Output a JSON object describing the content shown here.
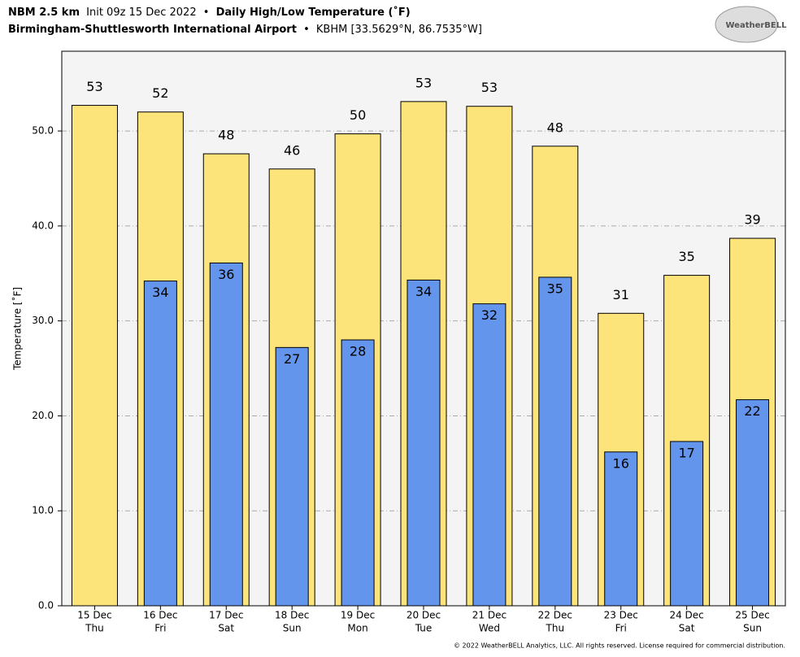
{
  "chart_data": {
    "type": "bar",
    "title": {
      "model": "NBM 2.5 km",
      "init": "Init 09z 15 Dec 2022",
      "separator": "•",
      "product": "Daily High/Low Temperature (˚F)"
    },
    "subtitle": {
      "station": "Birmingham-Shuttlesworth International Airport",
      "separator": "•",
      "location": "KBHM [33.5629°N, 86.7535°W]"
    },
    "y_label": "Temperature [˚F]",
    "logo": "WeatherBELL",
    "footer": "© 2022 WeatherBELL Analytics, LLC. All rights reserved. License required for commercial distribution.",
    "categories": [
      [
        "15 Dec",
        "Thu"
      ],
      [
        "16 Dec",
        "Fri"
      ],
      [
        "17 Dec",
        "Sat"
      ],
      [
        "18 Dec",
        "Sun"
      ],
      [
        "19 Dec",
        "Mon"
      ],
      [
        "20 Dec",
        "Tue"
      ],
      [
        "21 Dec",
        "Wed"
      ],
      [
        "22 Dec",
        "Thu"
      ],
      [
        "23 Dec",
        "Fri"
      ],
      [
        "24 Dec",
        "Sat"
      ],
      [
        "25 Dec",
        "Sun"
      ]
    ],
    "series": [
      {
        "color": "#fde47a",
        "values": [
          52.7,
          52.0,
          47.6,
          46.0,
          49.7,
          53.1,
          52.6,
          48.4,
          30.8,
          34.8,
          38.7
        ],
        "value_labels": [
          "53",
          "52",
          "48",
          "46",
          "50",
          "53",
          "53",
          "48",
          "31",
          "35",
          "39"
        ]
      },
      {
        "color": "#6495ed",
        "values": [
          null,
          34.2,
          36.1,
          27.2,
          28.0,
          34.3,
          31.8,
          34.6,
          16.2,
          17.3,
          21.7
        ],
        "value_labels": [
          null,
          "34",
          "36",
          "27",
          "28",
          "34",
          "32",
          "35",
          "16",
          "17",
          "22"
        ]
      }
    ],
    "ylim": [
      0,
      58.4
    ],
    "yticks": [
      {
        "value": 0,
        "label": "0.0"
      },
      {
        "value": 10,
        "label": "10.0"
      },
      {
        "value": 20,
        "label": "20.0"
      },
      {
        "value": 30,
        "label": "30.0"
      },
      {
        "value": 40,
        "label": "40.0"
      },
      {
        "value": 50,
        "label": "50.0"
      }
    ],
    "grid": true
  }
}
